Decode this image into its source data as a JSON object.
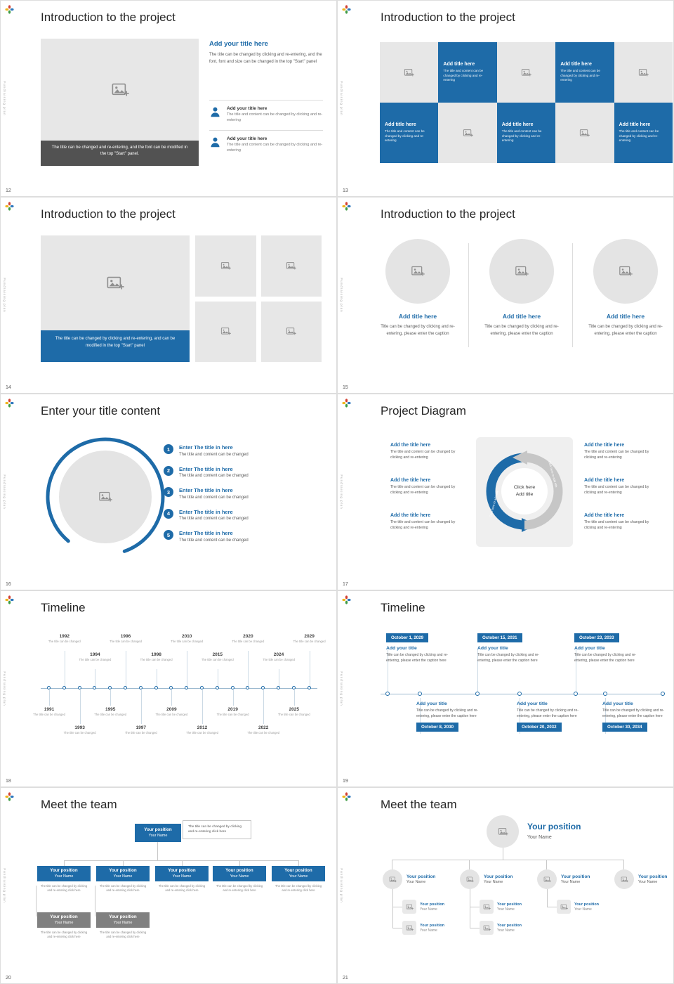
{
  "colors": {
    "accent": "#1e6ba8",
    "placeholder_bg": "#e7e7e7",
    "dark_caption": "#525252",
    "gray_box": "#808080",
    "title_text": "#262626",
    "body_text": "#595959",
    "line": "#c9c9c9"
  },
  "page": {
    "sidebar_text": "Fundraising plan"
  },
  "icons": [
    "pinwheel-logo",
    "image-placeholder-picture",
    "person-silhouette"
  ],
  "slides": {
    "s12": {
      "number": "12",
      "title": "Introduction to the project",
      "image_caption": "The title can be changed and re-entering, and the font can be modified in the top \"Start\" panel.",
      "section_heading": "Add your title here",
      "section_body": "The title can be changed by clicking and re-entering, and the font, font and size can be changed in the top \"Start\" panel",
      "items": [
        {
          "heading": "Add your title here",
          "body": "The title and content can be changed by clicking and re-entering"
        },
        {
          "heading": "Add your title here",
          "body": "The title and content can be changed by clicking and re-entering"
        }
      ]
    },
    "s13": {
      "number": "13",
      "title": "Introduction to the project",
      "cells": [
        {
          "type": "image"
        },
        {
          "type": "text",
          "heading": "Add title here",
          "body": "The title and content can be changed by clicking and re-entering"
        },
        {
          "type": "image"
        },
        {
          "type": "text",
          "heading": "Add title here",
          "body": "The title and content can be changed by clicking and re-entering"
        },
        {
          "type": "image"
        },
        {
          "type": "text",
          "heading": "Add title here",
          "body": "The title and content can be changed by clicking and re-entering"
        },
        {
          "type": "image"
        },
        {
          "type": "text",
          "heading": "Add title here",
          "body": "The title and content can be changed by clicking and re-entering"
        },
        {
          "type": "image"
        },
        {
          "type": "text",
          "heading": "Add title here",
          "body": "The title and content can be changed by clicking and re-entering"
        }
      ]
    },
    "s14": {
      "number": "14",
      "title": "Introduction to the project",
      "image_caption": "The title can be changed by clicking and re-entering, and can be modified in the top \"Start\" panel"
    },
    "s15": {
      "number": "15",
      "title": "Introduction to the project",
      "columns": [
        {
          "heading": "Add title here",
          "body": "Title can be changed by clicking and re-entering, please enter the caption"
        },
        {
          "heading": "Add title here",
          "body": "Title can be changed by clicking and re-entering, please enter the caption"
        },
        {
          "heading": "Add title here",
          "body": "Title can be changed by clicking and re-entering, please enter the caption"
        }
      ]
    },
    "s16": {
      "number": "16",
      "title": "Enter your title content",
      "items": [
        {
          "n": "1",
          "heading": "Enter The title in here",
          "body": "The title and content can be changed"
        },
        {
          "n": "2",
          "heading": "Enter The title in here",
          "body": "The title and content can be changed"
        },
        {
          "n": "3",
          "heading": "Enter The title in here",
          "body": "The title and content can be changed"
        },
        {
          "n": "4",
          "heading": "Enter The title in here",
          "body": "The title and content can be changed"
        },
        {
          "n": "5",
          "heading": "Enter The title in here",
          "body": "The title and content can be changed"
        }
      ]
    },
    "s17": {
      "number": "17",
      "title": "Project Diagram",
      "center_line1": "Click here",
      "center_line2": "Add title",
      "arrow_label": "Click here to add title",
      "left_items": [
        {
          "heading": "Add the title here",
          "body": "The title and content can be changed by clicking and re-entering"
        },
        {
          "heading": "Add the title here",
          "body": "The title and content can be changed by clicking and re-entering"
        },
        {
          "heading": "Add the title here",
          "body": "The title and content can be changed by clicking and re-entering"
        }
      ],
      "right_items": [
        {
          "heading": "Add the title here",
          "body": "The title and content can be changed by clicking and re-entering"
        },
        {
          "heading": "Add the title here",
          "body": "The title and content can be changed by clicking and re-entering"
        },
        {
          "heading": "Add the title here",
          "body": "The title and content can be changed by clicking and re-entering"
        }
      ]
    },
    "s18": {
      "number": "18",
      "title": "Timeline",
      "milestones": [
        {
          "year": "1991",
          "text": "The title can be changed"
        },
        {
          "year": "1992",
          "text": "The title can be changed"
        },
        {
          "year": "1993",
          "text": "The title can be changed"
        },
        {
          "year": "1994",
          "text": "The title can be changed"
        },
        {
          "year": "1995",
          "text": "The title can be changed"
        },
        {
          "year": "1996",
          "text": "The title can be changed"
        },
        {
          "year": "1997",
          "text": "The title can be changed"
        },
        {
          "year": "1998",
          "text": "The title can be changed"
        },
        {
          "year": "2009",
          "text": "The title can be changed"
        },
        {
          "year": "2010",
          "text": "The title can be changed"
        },
        {
          "year": "2012",
          "text": "The title can be changed"
        },
        {
          "year": "2015",
          "text": "The title can be changed"
        },
        {
          "year": "2019",
          "text": "The title can be changed"
        },
        {
          "year": "2020",
          "text": "The title can be changed"
        },
        {
          "year": "2022",
          "text": "The title can be changed"
        },
        {
          "year": "2024",
          "text": "The title can be changed"
        },
        {
          "year": "2025",
          "text": "The title can be changed"
        },
        {
          "year": "2029",
          "text": "The title can be changed"
        }
      ]
    },
    "s19": {
      "number": "19",
      "title": "Timeline",
      "top_milestones": [
        {
          "date": "October 1, 2029",
          "heading": "Add your title",
          "body": "Title can be changed by clicking and re-entering, please enter the caption here"
        },
        {
          "date": "October 15, 2031",
          "heading": "Add your title",
          "body": "Title can be changed by clicking and re-entering, please enter the caption here"
        },
        {
          "date": "October 23, 2033",
          "heading": "Add your title",
          "body": "Title can be changed by clicking and re-entering, please enter the caption here"
        }
      ],
      "bottom_milestones": [
        {
          "date": "October 8, 2030",
          "heading": "Add your title",
          "body": "Title can be changed by clicking and re-entering, please enter the caption here"
        },
        {
          "date": "October 20, 2032",
          "heading": "Add your title",
          "body": "Title can be changed by clicking and re-entering, please enter the caption here"
        },
        {
          "date": "October 30, 2034",
          "heading": "Add your title",
          "body": "Title can be changed by clicking and re-entering, please enter the caption here"
        }
      ]
    },
    "s20": {
      "number": "20",
      "title": "Meet the team",
      "root": {
        "position": "Your position",
        "name": "Your Name"
      },
      "note": "The title can be changed by clicking and re-entering click here",
      "members": [
        {
          "position": "Your position",
          "name": "Your Name",
          "caption": "The title can be changed by clicking and re-entering click here"
        },
        {
          "position": "Your position",
          "name": "Your Name",
          "caption": "The title can be changed by clicking and re-entering click here"
        },
        {
          "position": "Your position",
          "name": "Your Name",
          "caption": "The title can be changed by clicking and re-entering click here"
        },
        {
          "position": "Your position",
          "name": "Your Name",
          "caption": "The title can be changed by clicking and re-entering click here"
        },
        {
          "position": "Your position",
          "name": "Your Name",
          "caption": "The title can be changed by clicking and re-entering click here"
        }
      ],
      "subs": [
        {
          "position": "Your position",
          "name": "Your Name",
          "caption": "The title can be changed by clicking and re-entering click here"
        },
        {
          "position": "Your position",
          "name": "Your Name",
          "caption": "The title can be changed by clicking and re-entering click here"
        }
      ]
    },
    "s21": {
      "number": "21",
      "title": "Meet the team",
      "lead": {
        "position": "Your position",
        "name": "Your Name"
      },
      "groups": [
        {
          "position": "Your position",
          "name": "Your Name"
        },
        {
          "position": "Your position",
          "name": "Your Name"
        },
        {
          "position": "Your position",
          "name": "Your Name"
        },
        {
          "position": "Your position",
          "name": "Your Name"
        }
      ],
      "children": [
        {
          "position": "Your position",
          "name": "Your Name"
        },
        {
          "position": "Your position",
          "name": "Your Name"
        },
        {
          "position": "Your position",
          "name": "Your Name"
        },
        {
          "position": "Your position",
          "name": "Your Name"
        },
        {
          "position": "Your position",
          "name": "Your Name"
        }
      ]
    }
  }
}
